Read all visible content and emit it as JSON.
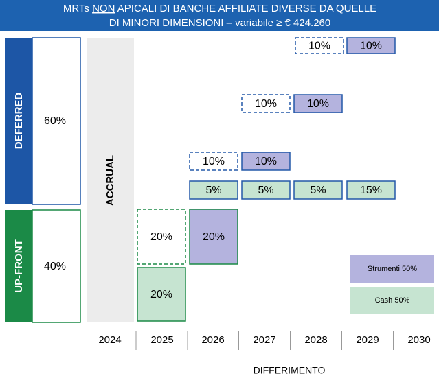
{
  "header": {
    "line1_pre": "MRTs ",
    "line1_underlined": "NON",
    "line1_post": " APICALI DI BANCHE AFFILIATE DIVERSE DA QUELLE",
    "line2": "DI MINORI DIMENSIONI – variabile ≥ € 424.260"
  },
  "deferred": {
    "label": "DEFERRED",
    "share": "60%"
  },
  "upfront": {
    "label": "UP-FRONT",
    "share": "40%"
  },
  "accrual": "ACCRUAL",
  "boxes": [
    "10%",
    "10%",
    "10%",
    "10%",
    "10%",
    "10%",
    "5%",
    "5%",
    "5%",
    "15%",
    "20%",
    "20%",
    "20%"
  ],
  "years": [
    "2024",
    "2025",
    "2026",
    "2027",
    "2028",
    "2029",
    "2030"
  ],
  "axis_label": "DIFFERIMENTO",
  "legend": [
    "Strumenti 50%",
    "Cash 50%"
  ]
}
